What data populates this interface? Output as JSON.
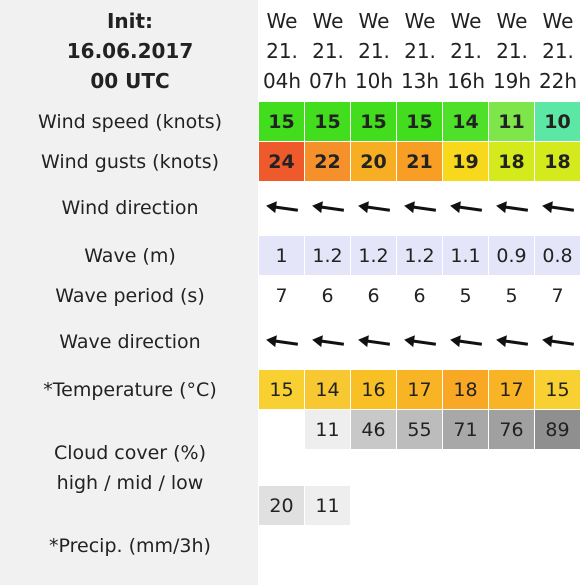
{
  "init": {
    "label": "Init:",
    "date": "16.06.2017",
    "time": "00 UTC"
  },
  "columns": [
    {
      "day": "We",
      "date": "21.",
      "hour": "04h"
    },
    {
      "day": "We",
      "date": "21.",
      "hour": "07h"
    },
    {
      "day": "We",
      "date": "21.",
      "hour": "10h"
    },
    {
      "day": "We",
      "date": "21.",
      "hour": "13h"
    },
    {
      "day": "We",
      "date": "21.",
      "hour": "16h"
    },
    {
      "day": "We",
      "date": "21.",
      "hour": "19h"
    },
    {
      "day": "We",
      "date": "21.",
      "hour": "22h"
    }
  ],
  "rows": [
    {
      "label": "Wind speed (knots)",
      "bold": true,
      "values": [
        15,
        15,
        15,
        15,
        14,
        11,
        10
      ],
      "colors": [
        "#42de1e",
        "#42de1e",
        "#42de1e",
        "#42de1e",
        "#4fe02a",
        "#7ee64a",
        "#5ce8a4"
      ]
    },
    {
      "label": "Wind gusts (knots)",
      "bold": true,
      "values": [
        24,
        22,
        20,
        21,
        19,
        18,
        18
      ],
      "colors": [
        "#ee5a2c",
        "#f6902a",
        "#f8ae22",
        "#f89e24",
        "#f8d81c",
        "#d4ea1c",
        "#d4ea1c"
      ]
    },
    {
      "label": "Wind direction",
      "arrows": true
    },
    {
      "label": "Wave (m)",
      "values": [
        1,
        1.2,
        1.2,
        1.2,
        1.1,
        0.9,
        0.8
      ],
      "colors": [
        "#e5e5f9",
        "#e5e5f9",
        "#e5e5f9",
        "#e5e5f9",
        "#e5e5f9",
        "#e5e5f9",
        "#e5e5f9"
      ]
    },
    {
      "label": "Wave period (s)",
      "values": [
        7,
        6,
        6,
        6,
        5,
        5,
        7
      ]
    },
    {
      "label": "Wave direction",
      "arrows": true
    },
    {
      "label": "*Temperature (°C)",
      "values": [
        15,
        14,
        16,
        17,
        18,
        17,
        15
      ],
      "colors": [
        "#f8d032",
        "#f8c832",
        "#f8c024",
        "#f8b424",
        "#f8a824",
        "#f8b424",
        "#f8d032"
      ]
    },
    {
      "values": [
        null,
        11,
        46,
        55,
        71,
        76,
        89
      ],
      "colors": [
        "#ffffff",
        "#eeeeee",
        "#c8c8c8",
        "#bcbcbc",
        "#a8a8a8",
        "#a0a0a0",
        "#8f8f8f"
      ]
    },
    {
      "values": [
        null,
        null,
        null,
        null,
        null,
        null,
        null
      ]
    },
    {
      "values": [
        20,
        11,
        null,
        null,
        null,
        null,
        null
      ],
      "colors": [
        "#e0e0e0",
        "#eeeeee",
        "#ffffff",
        "#ffffff",
        "#ffffff",
        "#ffffff",
        "#ffffff"
      ]
    },
    {
      "label": "*Precip. (mm/3h)"
    }
  ],
  "cloud_cover": {
    "label": "Cloud cover (%)",
    "sublabel": "high / mid / low"
  }
}
